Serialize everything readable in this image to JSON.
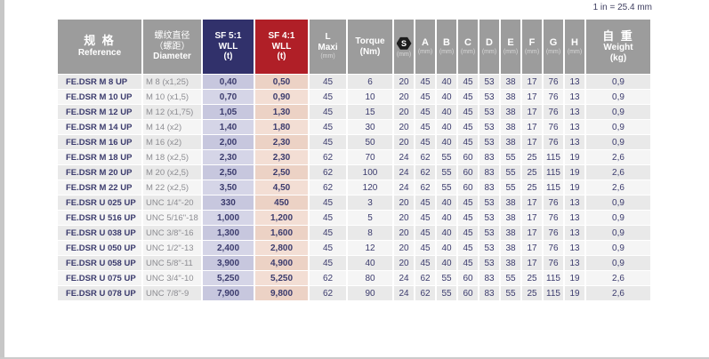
{
  "note": "1 in = 25.4 mm",
  "colors": {
    "header_grey": "#9c9c9c",
    "header_navy": "#31316b",
    "header_red": "#b01f27",
    "text_navy": "#3b3b6d",
    "wll5_tint": "#c7c7de",
    "wll4_tint": "#ecd2c5"
  },
  "table": {
    "headers": {
      "reference_cn": "规 格",
      "reference_en": "Reference",
      "diameter_cn1": "螺纹直径",
      "diameter_cn2": "（螺距）",
      "diameter_en": "Diameter",
      "sf5_l1": "SF 5:1",
      "sf5_l2": "WLL",
      "sf5_l3": "(t)",
      "sf4_l1": "SF 4:1",
      "sf4_l2": "WLL",
      "sf4_l3": "(t)",
      "lmaxi_l1": "L",
      "lmaxi_l2": "Maxi",
      "lmaxi_unit": "(mm)",
      "torque_l1": "Torque",
      "torque_l2": "(Nm)",
      "s_letter": "S",
      "s_unit": "(mm)",
      "dims": [
        {
          "letter": "A",
          "unit": "(mm)"
        },
        {
          "letter": "B",
          "unit": "(mm)"
        },
        {
          "letter": "C",
          "unit": "(mm)"
        },
        {
          "letter": "D",
          "unit": "(mm)"
        },
        {
          "letter": "E",
          "unit": "(mm)"
        },
        {
          "letter": "F",
          "unit": "(mm)"
        },
        {
          "letter": "G",
          "unit": "(mm)"
        },
        {
          "letter": "H",
          "unit": "(mm)"
        }
      ],
      "weight_cn": "自 重",
      "weight_en": "Weight",
      "weight_unit": "(kg)"
    },
    "columns": [
      "reference",
      "diameter",
      "wll5",
      "wll4",
      "lmaxi",
      "torque",
      "s",
      "a",
      "b",
      "c",
      "d",
      "e",
      "f",
      "g",
      "h",
      "weight"
    ],
    "rows": [
      [
        "FE.DSR M 8 UP",
        "M 8 (x1,25)",
        "0,40",
        "0,50",
        "45",
        "6",
        "20",
        "45",
        "40",
        "45",
        "53",
        "38",
        "17",
        "76",
        "13",
        "0,9"
      ],
      [
        "FE.DSR M 10 UP",
        "M 10 (x1,5)",
        "0,70",
        "0,90",
        "45",
        "10",
        "20",
        "45",
        "40",
        "45",
        "53",
        "38",
        "17",
        "76",
        "13",
        "0,9"
      ],
      [
        "FE.DSR M 12 UP",
        "M 12 (x1,75)",
        "1,05",
        "1,30",
        "45",
        "15",
        "20",
        "45",
        "40",
        "45",
        "53",
        "38",
        "17",
        "76",
        "13",
        "0,9"
      ],
      [
        "FE.DSR M 14 UP",
        "M 14 (x2)",
        "1,40",
        "1,80",
        "45",
        "30",
        "20",
        "45",
        "40",
        "45",
        "53",
        "38",
        "17",
        "76",
        "13",
        "0,9"
      ],
      [
        "FE.DSR M 16 UP",
        "M 16 (x2)",
        "2,00",
        "2,30",
        "45",
        "50",
        "20",
        "45",
        "40",
        "45",
        "53",
        "38",
        "17",
        "76",
        "13",
        "0,9"
      ],
      [
        "FE.DSR M 18 UP",
        "M 18 (x2,5)",
        "2,30",
        "2,30",
        "62",
        "70",
        "24",
        "62",
        "55",
        "60",
        "83",
        "55",
        "25",
        "115",
        "19",
        "2,6"
      ],
      [
        "FE.DSR M 20 UP",
        "M 20 (x2,5)",
        "2,50",
        "2,50",
        "62",
        "100",
        "24",
        "62",
        "55",
        "60",
        "83",
        "55",
        "25",
        "115",
        "19",
        "2,6"
      ],
      [
        "FE.DSR M 22 UP",
        "M 22 (x2,5)",
        "3,50",
        "4,50",
        "62",
        "120",
        "24",
        "62",
        "55",
        "60",
        "83",
        "55",
        "25",
        "115",
        "19",
        "2,6"
      ],
      [
        "FE.DSR U 025 UP",
        "UNC 1/4\"-20",
        "330",
        "450",
        "45",
        "3",
        "20",
        "45",
        "40",
        "45",
        "53",
        "38",
        "17",
        "76",
        "13",
        "0,9"
      ],
      [
        "FE.DSR U 516 UP",
        "UNC 5/16\"-18",
        "1,000",
        "1,200",
        "45",
        "5",
        "20",
        "45",
        "40",
        "45",
        "53",
        "38",
        "17",
        "76",
        "13",
        "0,9"
      ],
      [
        "FE.DSR U 038 UP",
        "UNC 3/8\"-16",
        "1,300",
        "1,600",
        "45",
        "8",
        "20",
        "45",
        "40",
        "45",
        "53",
        "38",
        "17",
        "76",
        "13",
        "0,9"
      ],
      [
        "FE.DSR U 050 UP",
        "UNC 1/2\"-13",
        "2,400",
        "2,800",
        "45",
        "12",
        "20",
        "45",
        "40",
        "45",
        "53",
        "38",
        "17",
        "76",
        "13",
        "0,9"
      ],
      [
        "FE.DSR U 058 UP",
        "UNC 5/8\"-11",
        "3,900",
        "4,900",
        "45",
        "40",
        "20",
        "45",
        "40",
        "45",
        "53",
        "38",
        "17",
        "76",
        "13",
        "0,9"
      ],
      [
        "FE.DSR U 075 UP",
        "UNC 3/4\"-10",
        "5,250",
        "5,250",
        "62",
        "80",
        "24",
        "62",
        "55",
        "60",
        "83",
        "55",
        "25",
        "115",
        "19",
        "2,6"
      ],
      [
        "FE.DSR U 078 UP",
        "UNC 7/8\"-9",
        "7,900",
        "9,800",
        "62",
        "90",
        "24",
        "62",
        "55",
        "60",
        "83",
        "55",
        "25",
        "115",
        "19",
        "2,6"
      ]
    ]
  }
}
